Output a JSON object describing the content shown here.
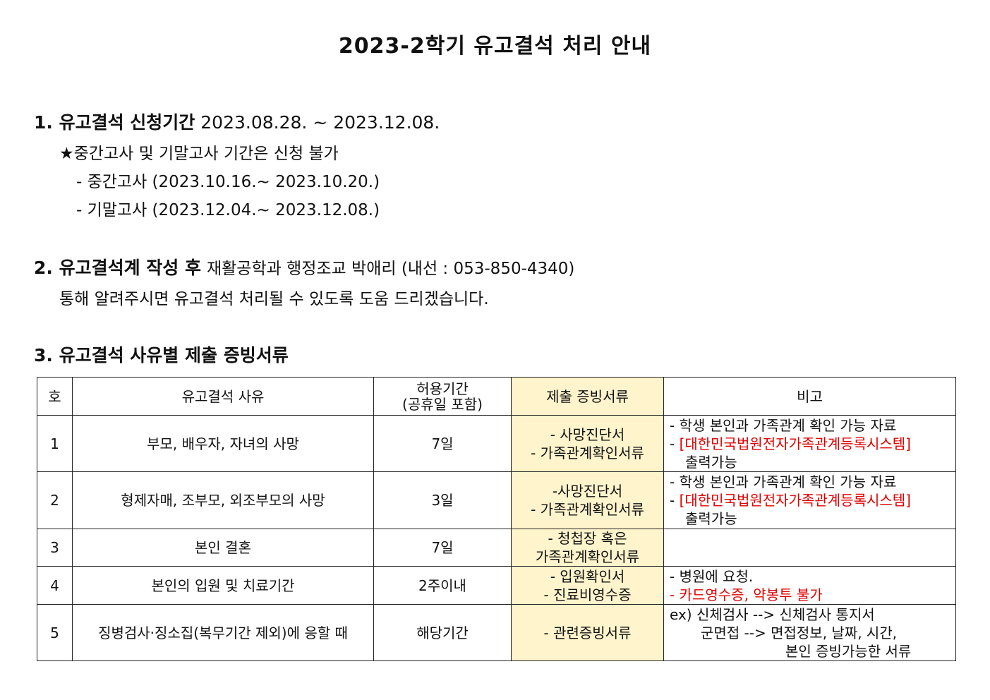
{
  "title": "2023-2학기 유고결석 처리 안내",
  "section1": {
    "heading": "1. 유고결석 신청기간",
    "period": "2023.08.28. ~ 2023.12.08.",
    "note": "★중간고사 및 기말고사 기간은 신청 불가",
    "midterm": "- 중간고사 (2023.10.16.~ 2023.10.20.)",
    "final": "- 기말고사 (2023.12.04.~ 2023.12.08.)"
  },
  "section2": {
    "heading": "2. 유고결석계 작성 후",
    "contact": "재활공학과 행정조교 박애리 (내선 : 053-850-4340)",
    "line2": "통해 알려주시면 유고결석 처리될 수 있도록 도움 드리겠습니다."
  },
  "section3": {
    "heading": "3. 유고결석 사유별 제출 증빙서류"
  },
  "table": {
    "headers": [
      "호",
      "유고결석 사유",
      "허용기간",
      "(공휴일 포함)",
      "제출 증빙서류",
      "비고"
    ],
    "highlight_color": "#fff4cc",
    "rows": [
      {
        "no": "1",
        "reason": "부모, 배우자, 자녀의 사망",
        "days": "7일",
        "docs": [
          "- 사망진단서",
          "- 가족관계확인서류"
        ],
        "note": [
          "- 학생 본인과 가족관계 확인 가능 자료",
          "- ",
          "[대한민국법원전자가족관계등록시스템]",
          "출력가능"
        ]
      },
      {
        "no": "2",
        "reason": "형제자매, 조부모, 외조부모의 사망",
        "days": "3일",
        "docs": [
          "-사망진단서",
          "- 가족관계확인서류"
        ],
        "note": [
          "- 학생 본인과 가족관계 확인 가능 자료",
          "- ",
          "[대한민국법원전자가족관계등록시스템]",
          "출력가능"
        ]
      },
      {
        "no": "3",
        "reason": "본인 결혼",
        "days": "7일",
        "docs": [
          "- 청첩장 혹은",
          "가족관계확인서류"
        ]
      },
      {
        "no": "4",
        "reason": "본인의 입원 및 치료기간",
        "days": "2주이내",
        "docs": [
          "- 입원확인서",
          "- 진료비영수증"
        ],
        "note": [
          "- 병원에 요청.",
          "- 카드영수증, 약봉투 불가"
        ]
      },
      {
        "no": "5",
        "reason": "징병검사·징소집(복무기간 제외)에 응할 때",
        "days": "해당기간",
        "docs": [
          "- 관련증빙서류"
        ],
        "note": [
          "ex) 신체검사 --> 신체검사 통지서",
          "군면접 --> 면접정보, 날짜, 시간,",
          "본인 증빙가능한 서류"
        ]
      }
    ]
  }
}
